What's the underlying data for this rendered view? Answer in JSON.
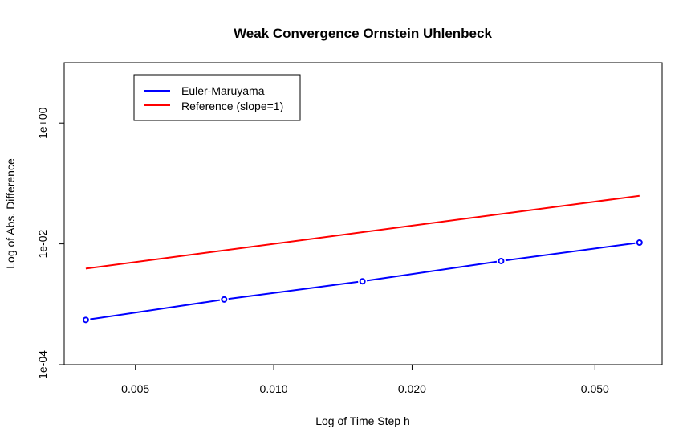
{
  "chart_data": {
    "type": "line",
    "title": "Weak Convergence Ornstein Uhlenbeck",
    "xlabel": "Log of Time Step h",
    "ylabel": "Log of Abs. Difference",
    "xscale": "log",
    "yscale": "log",
    "xlim": [
      0.0035,
      0.07
    ],
    "ylim": [
      0.0001,
      10
    ],
    "xticks": [
      0.005,
      0.01,
      0.02,
      0.05
    ],
    "xtick_labels": [
      "0.005",
      "0.010",
      "0.020",
      "0.050"
    ],
    "yticks": [
      0.0001,
      0.01,
      1
    ],
    "ytick_labels": [
      "1e-04",
      "1e-02",
      "1e+00"
    ],
    "grid": false,
    "legend_position": "top-left",
    "series": [
      {
        "name": "Euler-Maruyama",
        "color": "#0000ff",
        "markers": true,
        "x": [
          0.0039,
          0.0078,
          0.0156,
          0.03125,
          0.0625
        ],
        "y": [
          0.00055,
          0.0012,
          0.0024,
          0.0052,
          0.0105
        ]
      },
      {
        "name": "Reference (slope=1)",
        "color": "#ff0000",
        "markers": false,
        "x": [
          0.0039,
          0.0625
        ],
        "y": [
          0.0039,
          0.0625
        ]
      }
    ]
  }
}
